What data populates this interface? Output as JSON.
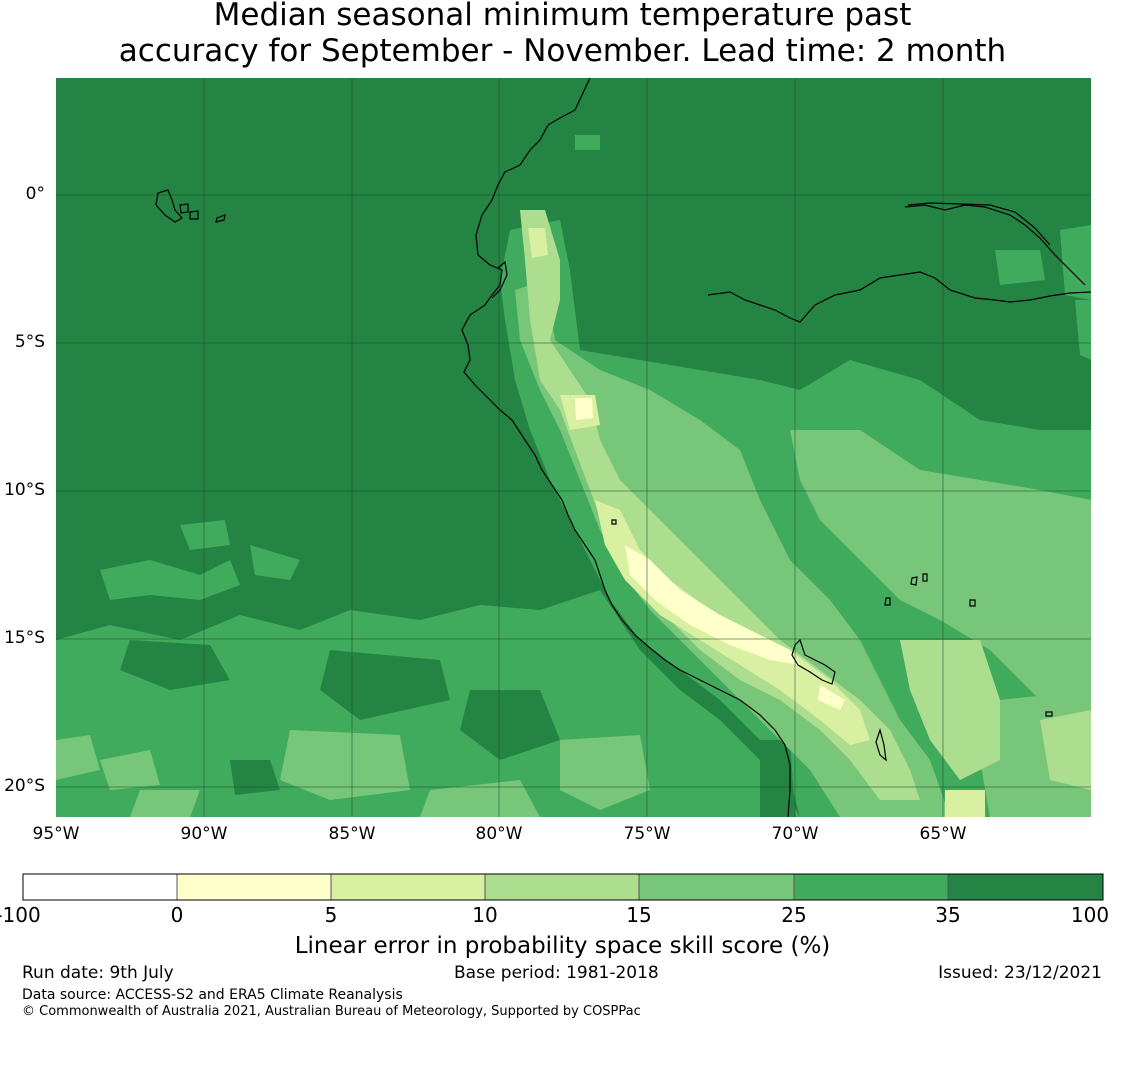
{
  "title": {
    "line1": "Median seasonal minimum temperature past",
    "line2": "accuracy for September - November. Lead time: 2 month"
  },
  "map": {
    "lat_labels": [
      "0°",
      "5°S",
      "10°S",
      "15°S",
      "20°S"
    ],
    "lon_labels": [
      "95°W",
      "90°W",
      "85°W",
      "80°W",
      "75°W",
      "70°W",
      "65°W"
    ],
    "gridlines": true
  },
  "colorbar": {
    "ticks": [
      "-100",
      "0",
      "5",
      "10",
      "15",
      "25",
      "35",
      "100"
    ],
    "colors": [
      "#ffffff",
      "#ffffcc",
      "#d9f0a3",
      "#addd8e",
      "#78c679",
      "#41ab5d",
      "#238443"
    ],
    "label": "Linear error in probability space skill score (%)"
  },
  "footer": {
    "run_date": "Run date: 9th July",
    "base_period": "Base period: 1981-2018",
    "issued": "Issued: 23/12/2021",
    "data_source": "Data source: ACCESS-S2 and ERA5 Climate Reanalysis",
    "copyright": "© Commonwealth of Australia 2021, Australian Bureau of Meteorology, Supported by COSPPac"
  }
}
